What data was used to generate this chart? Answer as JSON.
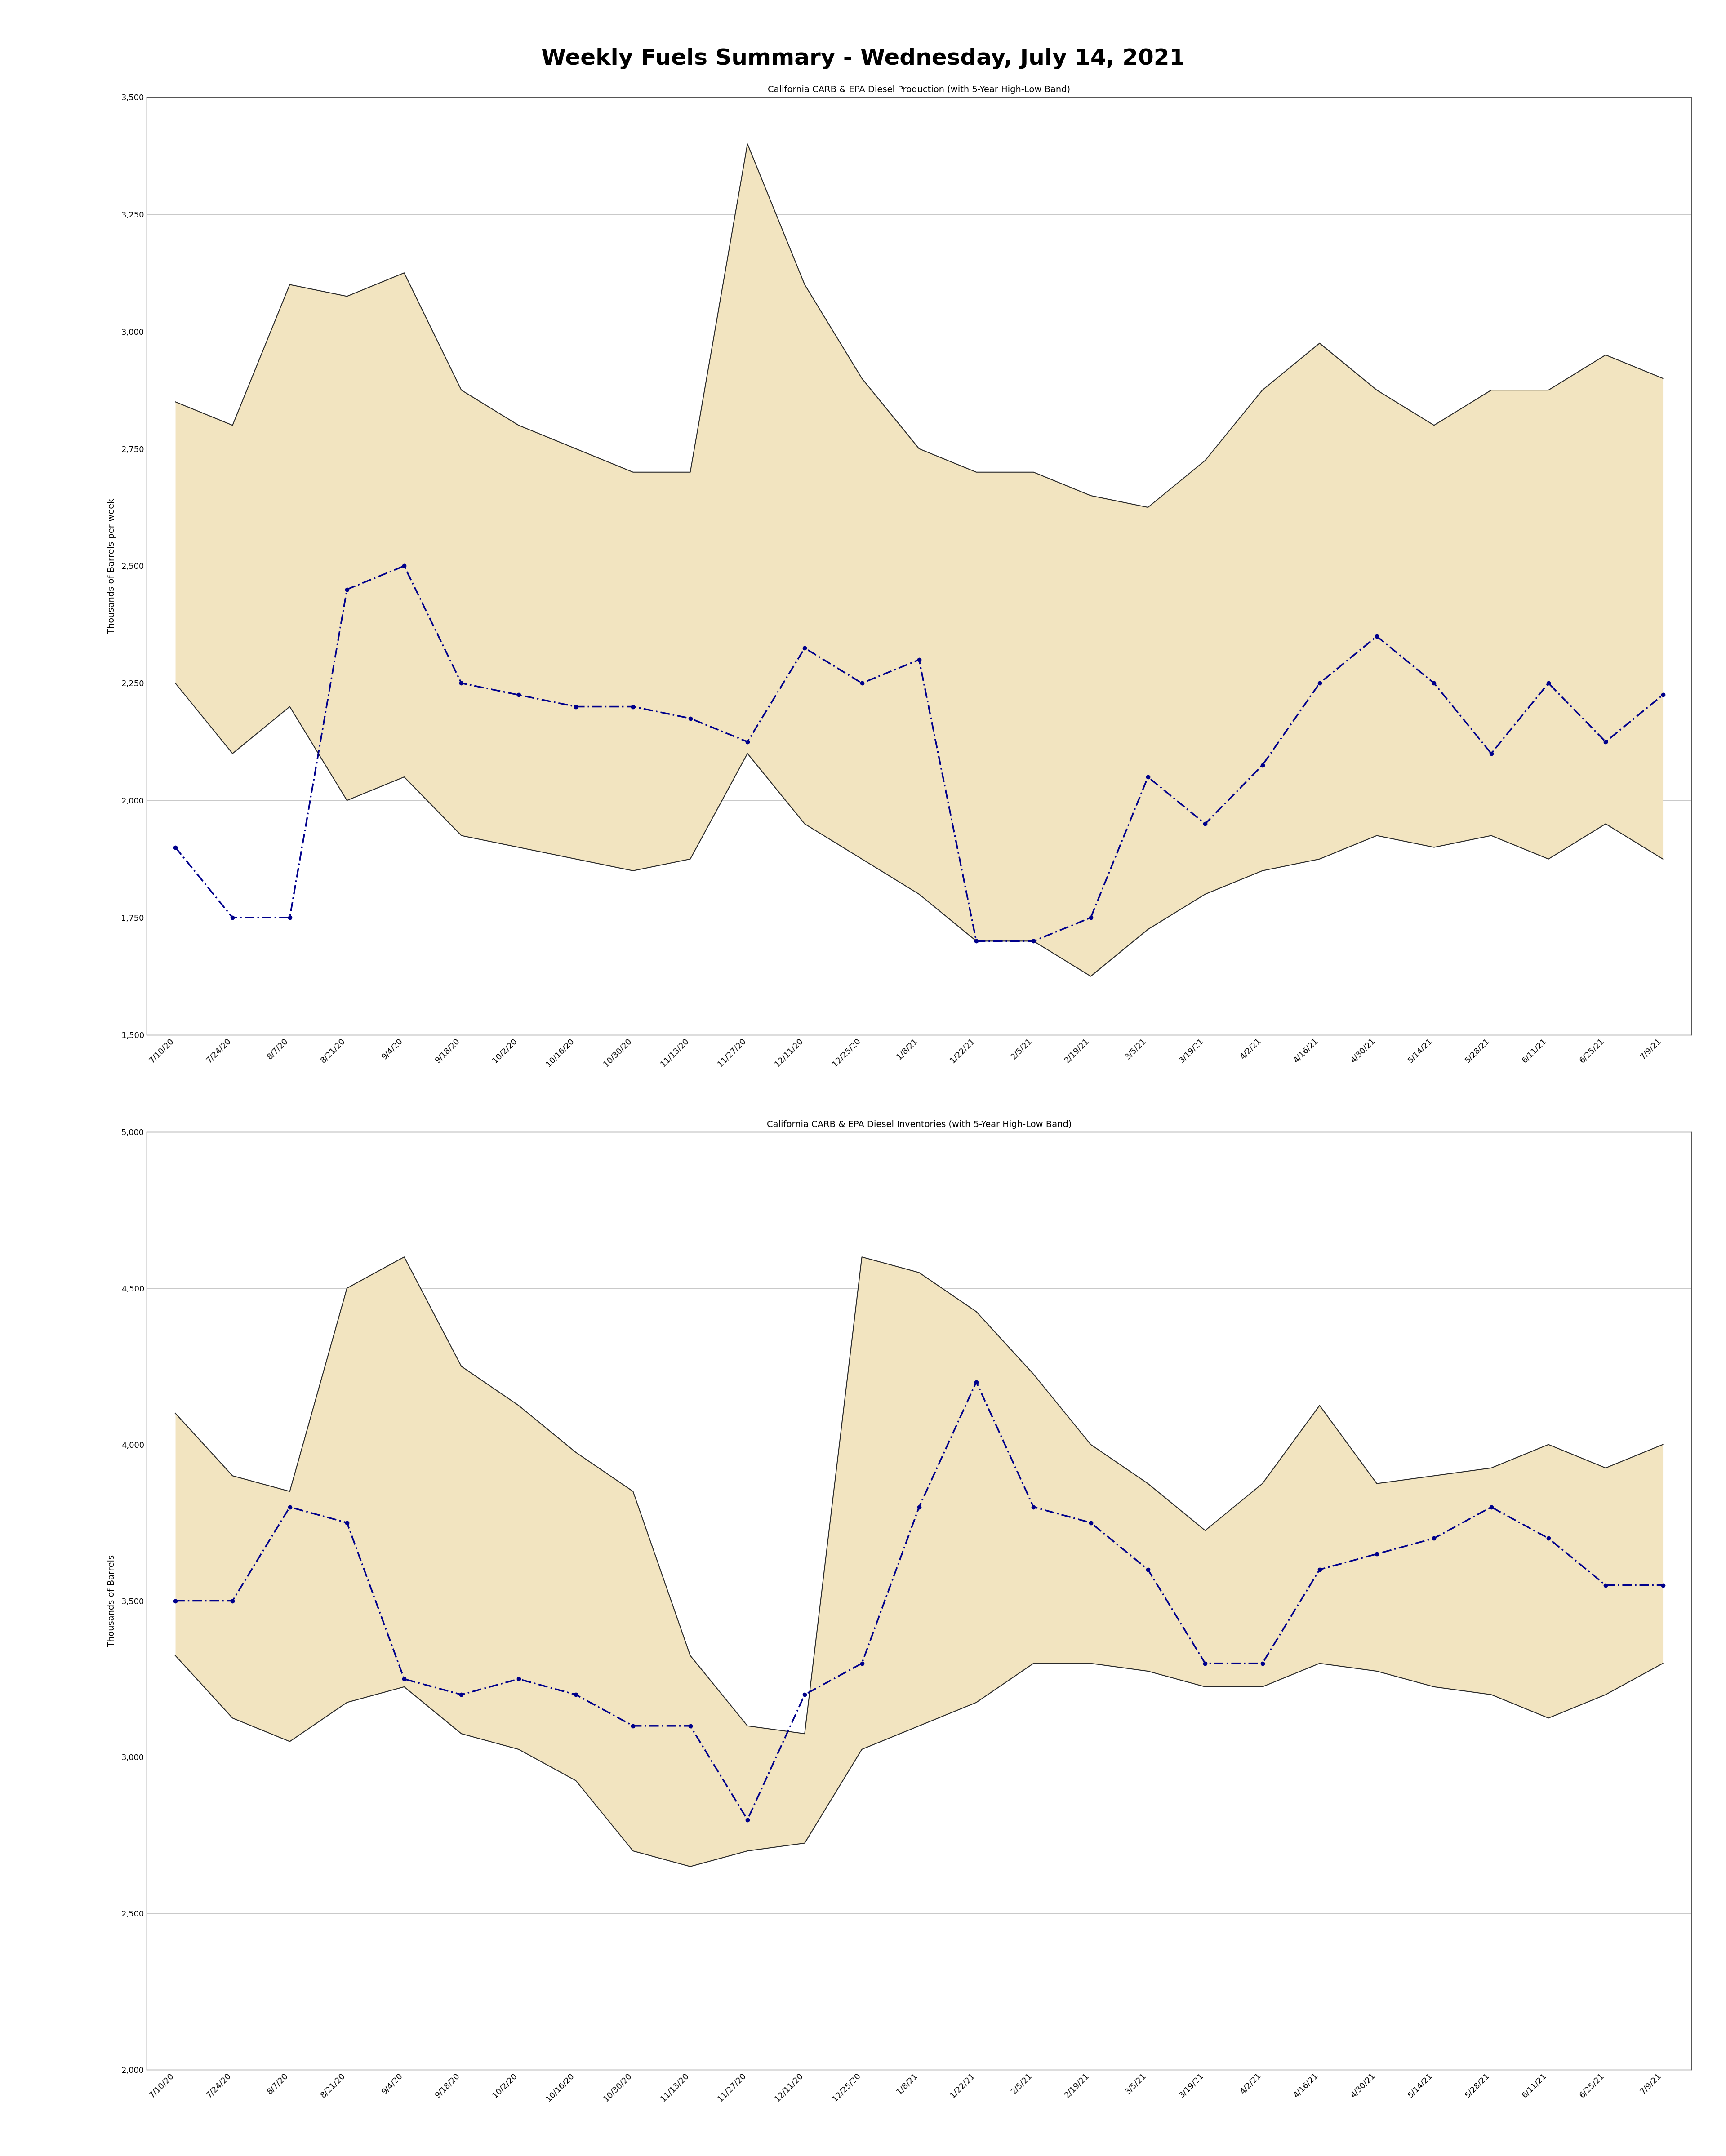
{
  "title": "Weekly Fuels Summary - Wednesday, July 14, 2021",
  "chart1_title": "California CARB & EPA Diesel Production (with 5-Year High-Low Band)",
  "chart2_title": "California CARB & EPA Diesel Inventories (with 5-Year High-Low Band)",
  "chart1_ylabel": "Thousands of Barrels per week",
  "chart2_ylabel": "Thousands of Barrels",
  "x_labels": [
    "7/10/20",
    "7/24/20",
    "8/7/20",
    "8/21/20",
    "9/4/20",
    "9/18/20",
    "10/2/20",
    "10/16/20",
    "10/30/20",
    "11/13/20",
    "11/27/20",
    "12/11/20",
    "12/25/20",
    "1/8/21",
    "1/22/21",
    "2/5/21",
    "2/19/21",
    "3/5/21",
    "3/19/21",
    "4/2/21",
    "4/16/21",
    "4/30/21",
    "5/14/21",
    "5/28/21",
    "6/11/21",
    "6/25/21",
    "7/9/21"
  ],
  "chart1_high": [
    2850,
    2800,
    3100,
    3075,
    3125,
    2875,
    2800,
    2750,
    2700,
    2700,
    3400,
    3100,
    2900,
    2750,
    2700,
    2700,
    2650,
    2625,
    2725,
    2875,
    2975,
    2875,
    2800,
    2875,
    2875,
    2950,
    2900
  ],
  "chart1_low": [
    2250,
    2100,
    2200,
    2000,
    2050,
    1925,
    1900,
    1875,
    1850,
    1875,
    2100,
    1950,
    1875,
    1800,
    1700,
    1700,
    1625,
    1725,
    1800,
    1850,
    1875,
    1925,
    1900,
    1925,
    1875,
    1950,
    1875
  ],
  "chart1_actual": [
    1900,
    1750,
    1750,
    2450,
    2500,
    2250,
    2225,
    2200,
    2200,
    2175,
    2125,
    2325,
    2250,
    2300,
    1700,
    1700,
    1750,
    2050,
    1950,
    2075,
    2250,
    2350,
    2250,
    2100,
    2250,
    2125,
    2225
  ],
  "chart2_high": [
    4100,
    3900,
    3850,
    4500,
    4600,
    4250,
    4125,
    3975,
    3850,
    3325,
    3100,
    3075,
    4600,
    4550,
    4425,
    4225,
    4000,
    3875,
    3725,
    3875,
    4125,
    3875,
    3900,
    3925,
    4000,
    3925,
    4000
  ],
  "chart2_low": [
    3325,
    3125,
    3050,
    3175,
    3225,
    3075,
    3025,
    2925,
    2700,
    2650,
    2700,
    2725,
    3025,
    3100,
    3175,
    3300,
    3300,
    3275,
    3225,
    3225,
    3300,
    3275,
    3225,
    3200,
    3125,
    3200,
    3300
  ],
  "chart2_actual": [
    3500,
    3500,
    3800,
    3750,
    3250,
    3200,
    3250,
    3200,
    3100,
    3100,
    2800,
    3200,
    3300,
    3800,
    4200,
    3800,
    3750,
    3600,
    3300,
    3300,
    3600,
    3650,
    3700,
    3800,
    3700,
    3550,
    3550
  ],
  "band_color": "#f2e4c0",
  "band_edge_color": "#2a2a2a",
  "line_color": "#00008B",
  "chart1_ylim": [
    1500,
    3500
  ],
  "chart2_ylim": [
    2000,
    5000
  ],
  "chart1_yticks": [
    1500,
    1750,
    2000,
    2250,
    2500,
    2750,
    3000,
    3250,
    3500
  ],
  "chart2_yticks": [
    2000,
    2500,
    3000,
    3500,
    4000,
    4500,
    5000
  ],
  "bg_color": "#ffffff",
  "panel_bg": "#ffffff",
  "title_fontsize": 36,
  "subtitle_fontsize": 14,
  "tick_fontsize": 13,
  "ylabel_fontsize": 14
}
